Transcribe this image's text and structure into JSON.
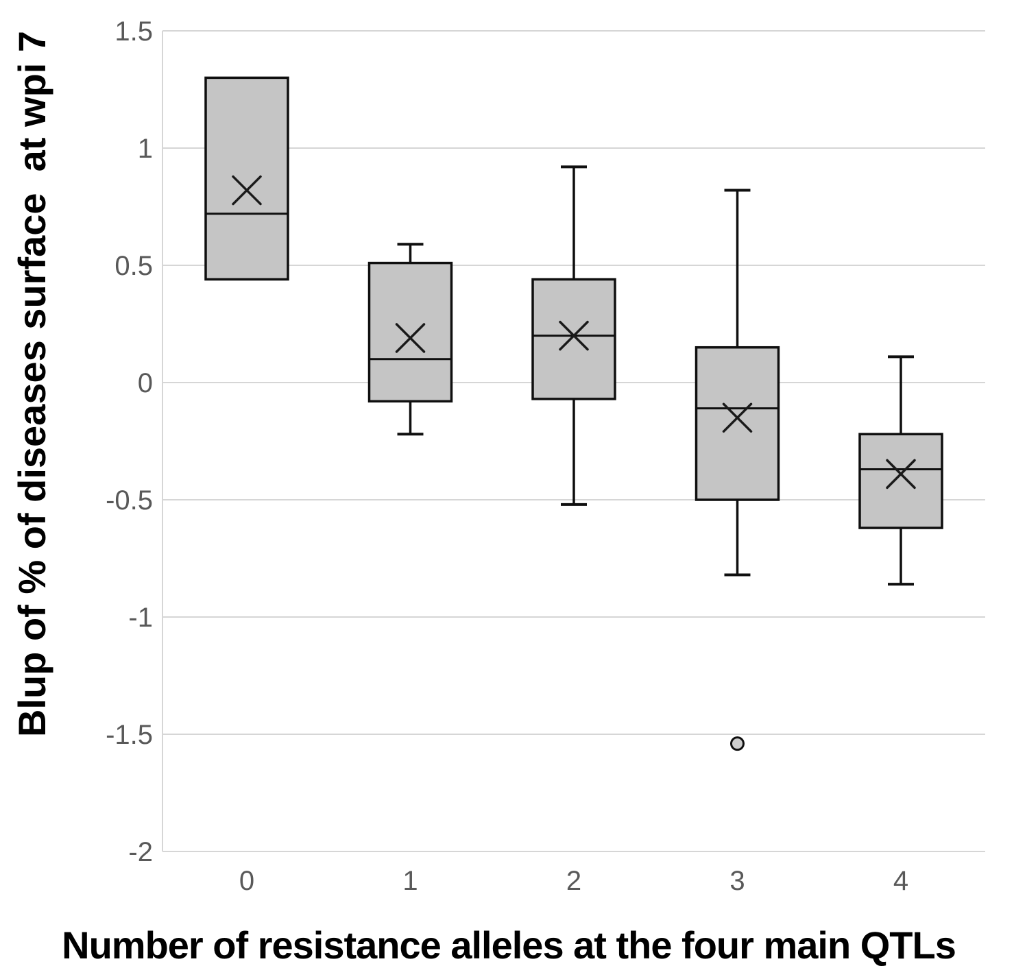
{
  "chart_data": {
    "type": "boxplot",
    "title": "",
    "xlabel": "Number of resistance alleles at the four main QTLs",
    "ylabel": "Blup of % of diseases surface  at wpi 7",
    "categories": [
      "0",
      "1",
      "2",
      "3",
      "4"
    ],
    "ylim": [
      -2,
      1.5
    ],
    "yticks": [
      "1.5",
      "1",
      "0.5",
      "0",
      "-0.5",
      "-1",
      "-1.5",
      "-2"
    ],
    "ytick_step": 0.5,
    "grid": "horizontal",
    "legend": "none",
    "mean_marker": "x",
    "outlier_marker": "o",
    "boxes": [
      {
        "category": "0",
        "whisker_low": null,
        "q1": 0.44,
        "median": 0.72,
        "q3": 1.3,
        "whisker_high": null,
        "mean": 0.82,
        "outliers": []
      },
      {
        "category": "1",
        "whisker_low": -0.22,
        "q1": -0.08,
        "median": 0.1,
        "q3": 0.51,
        "whisker_high": 0.59,
        "mean": 0.19,
        "outliers": []
      },
      {
        "category": "2",
        "whisker_low": -0.52,
        "q1": -0.07,
        "median": 0.2,
        "q3": 0.44,
        "whisker_high": 0.92,
        "mean": 0.2,
        "outliers": []
      },
      {
        "category": "3",
        "whisker_low": -0.82,
        "q1": -0.5,
        "median": -0.11,
        "q3": 0.15,
        "whisker_high": 0.82,
        "mean": -0.15,
        "outliers": [
          -1.54
        ]
      },
      {
        "category": "4",
        "whisker_low": -0.86,
        "q1": -0.62,
        "median": -0.37,
        "q3": -0.22,
        "whisker_high": 0.11,
        "mean": -0.39,
        "outliers": []
      }
    ],
    "colors": {
      "box_fill": "#c5c5c5",
      "box_border": "#0f0f0f",
      "median_line": "#0f0f0f",
      "whisker": "#0f0f0f",
      "mean_marker_color": "#1a1a1a",
      "outlier_fill": "#cdcdcd",
      "gridline": "#d6d6d6",
      "tick_label_color": "#595959",
      "title_color": "#000000",
      "background": "#ffffff"
    }
  }
}
